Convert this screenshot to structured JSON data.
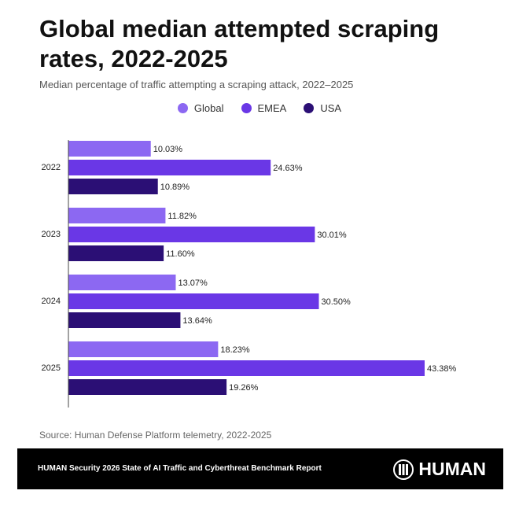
{
  "chart_data": {
    "type": "hbar",
    "title": "Global median attempted scraping rates, 2022-2025",
    "subtitle": "Median percentage of traffic attempting a scraping attack, 2022–2025",
    "categories": [
      "2022",
      "2023",
      "2024",
      "2025"
    ],
    "series": [
      {
        "name": "Global",
        "color": "#8c68f2",
        "values": [
          10.03,
          11.82,
          13.07,
          18.23
        ],
        "value_labels": [
          "10.03%",
          "11.82%",
          "13.07%",
          "18.23%"
        ]
      },
      {
        "name": "EMEA",
        "color": "#6a37e6",
        "values": [
          24.63,
          30.01,
          30.5,
          43.38
        ],
        "value_labels": [
          "24.63%",
          "30.01%",
          "30.50%",
          "43.38%"
        ]
      },
      {
        "name": "USA",
        "color": "#2b0f75",
        "values": [
          10.89,
          11.6,
          13.64,
          19.26
        ],
        "value_labels": [
          "10.89%",
          "11.60%",
          "13.64%",
          "19.26%"
        ]
      }
    ],
    "source": "Source: Human Defense Platform telemetry, 2022-2025",
    "footer": "HUMAN Security 2026 State of AI Traffic and Cyberthreat Benchmark Report",
    "logo": "HUMAN"
  }
}
